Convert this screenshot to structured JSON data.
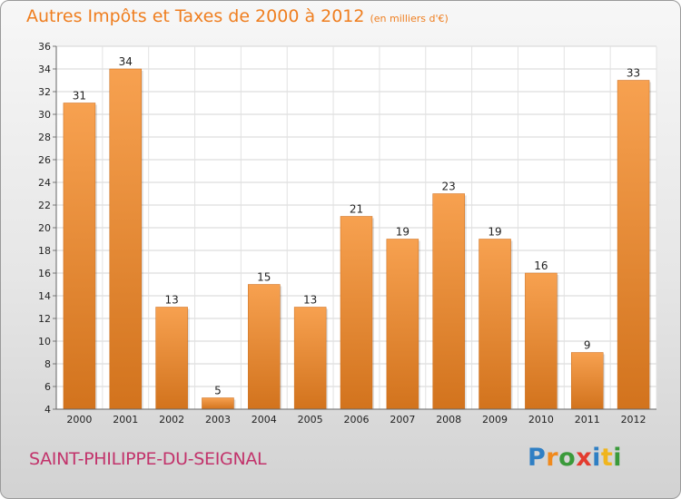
{
  "title": "Autres Impôts et Taxes de 2000 à 2012",
  "subtitle": "(en milliers d'€)",
  "commune": "SAINT-PHILIPPE-DU-SEIGNAL",
  "logo": {
    "letters": [
      "P",
      "r",
      "o",
      "x",
      "i",
      "t",
      "i"
    ],
    "colors": [
      "#2f7fc4",
      "#f08a1d",
      "#3a9a3a",
      "#e33b2f",
      "#2f7fc4",
      "#f0b51d",
      "#3a9a3a"
    ]
  },
  "colors": {
    "bar_top": "#f7a150",
    "bar_bottom": "#d2731d",
    "accent": "#ef7e1f",
    "commune": "#c2336b"
  },
  "chart_data": {
    "type": "bar",
    "categories": [
      "2000",
      "2001",
      "2002",
      "2003",
      "2004",
      "2005",
      "2006",
      "2007",
      "2008",
      "2009",
      "2010",
      "2011",
      "2012"
    ],
    "values": [
      31,
      34,
      13,
      5,
      15,
      13,
      21,
      19,
      23,
      19,
      16,
      9,
      33
    ],
    "data_labels": [
      "31",
      "34",
      "13",
      "5",
      "15",
      "13",
      "21",
      "19",
      "23",
      "19",
      "16",
      "9",
      "33"
    ],
    "ylim": [
      4,
      36
    ],
    "yticks": [
      4,
      6,
      8,
      10,
      12,
      14,
      16,
      18,
      20,
      22,
      24,
      26,
      28,
      30,
      32,
      34,
      36
    ],
    "title": "Autres Impôts et Taxes de 2000 à 2012",
    "xlabel": "",
    "ylabel": "",
    "grid": true
  }
}
